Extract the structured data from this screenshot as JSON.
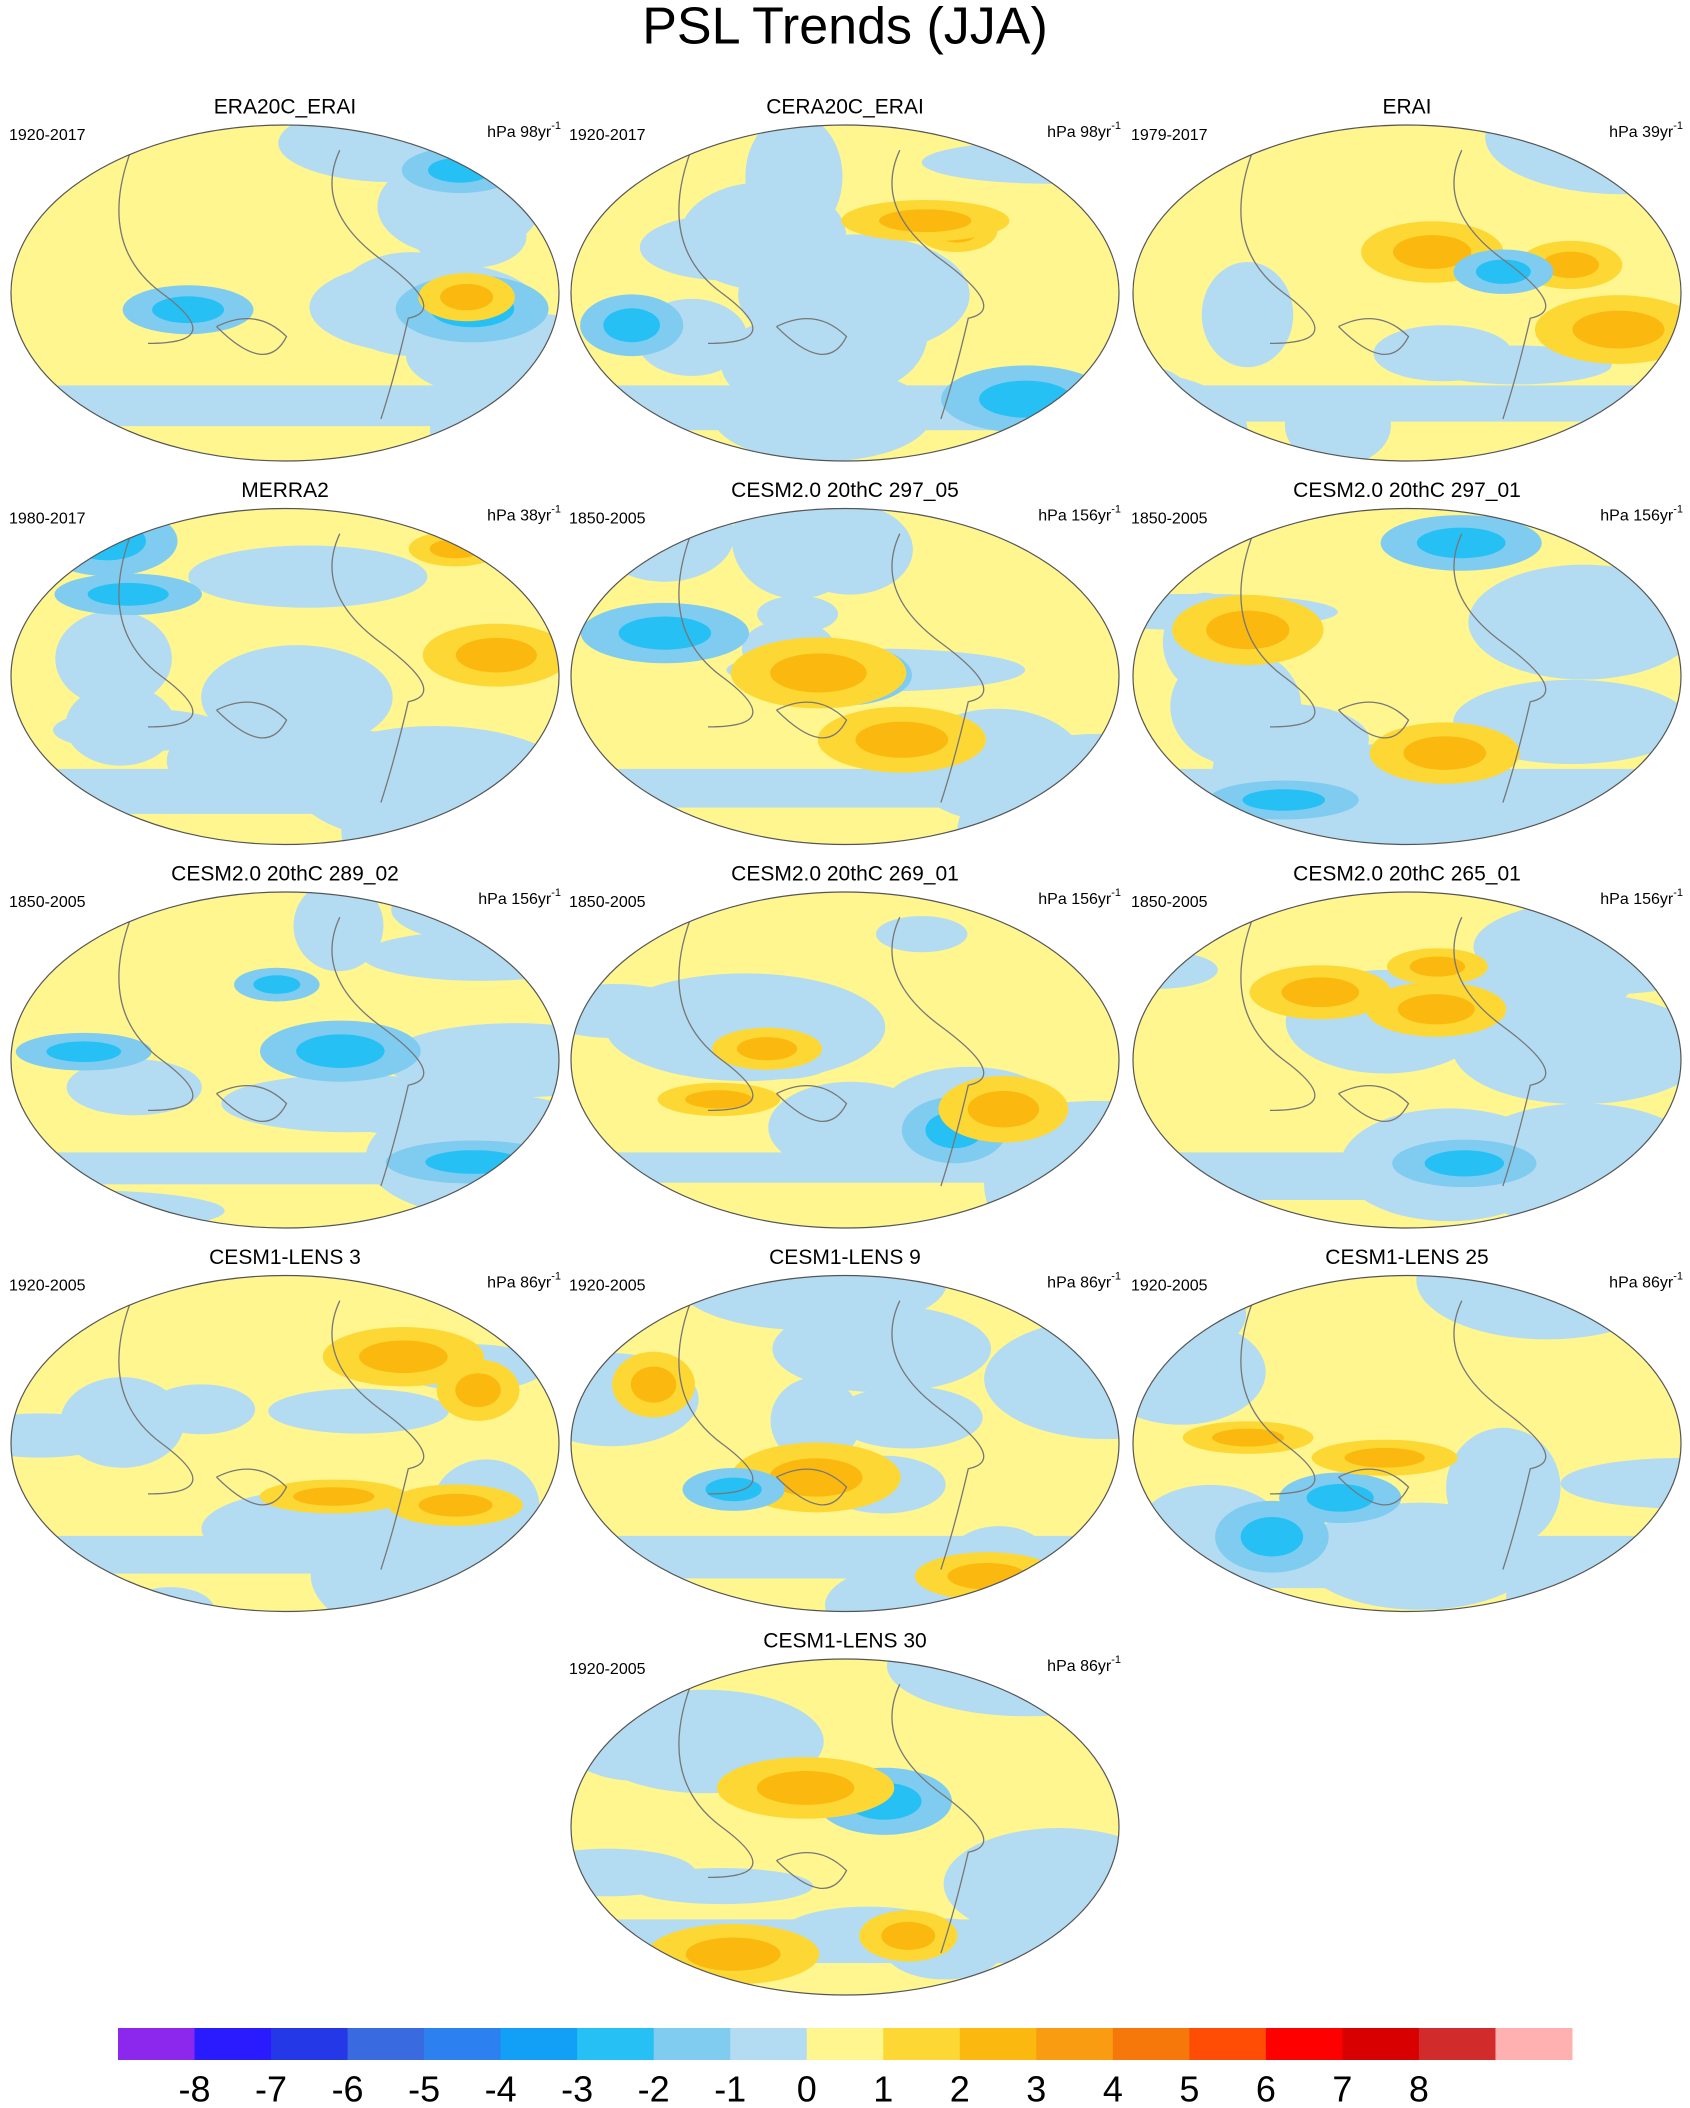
{
  "title": "PSL Trends (JJA)",
  "panels": [
    {
      "title": "ERA20C_ERAI",
      "period": "1920-2017",
      "units": "hPa 98yr",
      "units_exponent": "-1"
    },
    {
      "title": "CERA20C_ERAI",
      "period": "1920-2017",
      "units": "hPa 98yr",
      "units_exponent": "-1"
    },
    {
      "title": "ERAI",
      "period": "1979-2017",
      "units": "hPa 39yr",
      "units_exponent": "-1"
    },
    {
      "title": "MERRA2",
      "period": "1980-2017",
      "units": "hPa 38yr",
      "units_exponent": "-1"
    },
    {
      "title": "CESM2.0 20thC 297_05",
      "period": "1850-2005",
      "units": "hPa 156yr",
      "units_exponent": "-1"
    },
    {
      "title": "CESM2.0 20thC 297_01",
      "period": "1850-2005",
      "units": "hPa 156yr",
      "units_exponent": "-1"
    },
    {
      "title": "CESM2.0 20thC 289_02",
      "period": "1850-2005",
      "units": "hPa 156yr",
      "units_exponent": "-1"
    },
    {
      "title": "CESM2.0 20thC 269_01",
      "period": "1850-2005",
      "units": "hPa 156yr",
      "units_exponent": "-1"
    },
    {
      "title": "CESM2.0 20thC 265_01",
      "period": "1850-2005",
      "units": "hPa 156yr",
      "units_exponent": "-1"
    },
    {
      "title": "CESM1-LENS 3",
      "period": "1920-2005",
      "units": "hPa 86yr",
      "units_exponent": "-1"
    },
    {
      "title": "CESM1-LENS 9",
      "period": "1920-2005",
      "units": "hPa 86yr",
      "units_exponent": "-1"
    },
    {
      "title": "CESM1-LENS 25",
      "period": "1920-2005",
      "units": "hPa 86yr",
      "units_exponent": "-1"
    },
    {
      "title": "CESM1-LENS 30",
      "period": "1920-2005",
      "units": "hPa 86yr",
      "units_exponent": "-1"
    }
  ],
  "colorbar": {
    "levels": [
      -8,
      -7,
      -6,
      -5,
      -4,
      -3,
      -2,
      -1,
      0,
      1,
      2,
      3,
      4,
      5,
      6,
      7,
      8
    ],
    "colors": [
      "#8c28ee",
      "#2a1bff",
      "#2438e8",
      "#3a6ae0",
      "#2d80f0",
      "#12a0f7",
      "#26c0f5",
      "#80ccf0",
      "#b3dcf2",
      "#fff68f",
      "#fdd835",
      "#fbb80f",
      "#f99c11",
      "#f7780a",
      "#ff4d05",
      "#ff0000",
      "#d80000",
      "#d22b2b",
      "#ffb0b0"
    ]
  }
}
